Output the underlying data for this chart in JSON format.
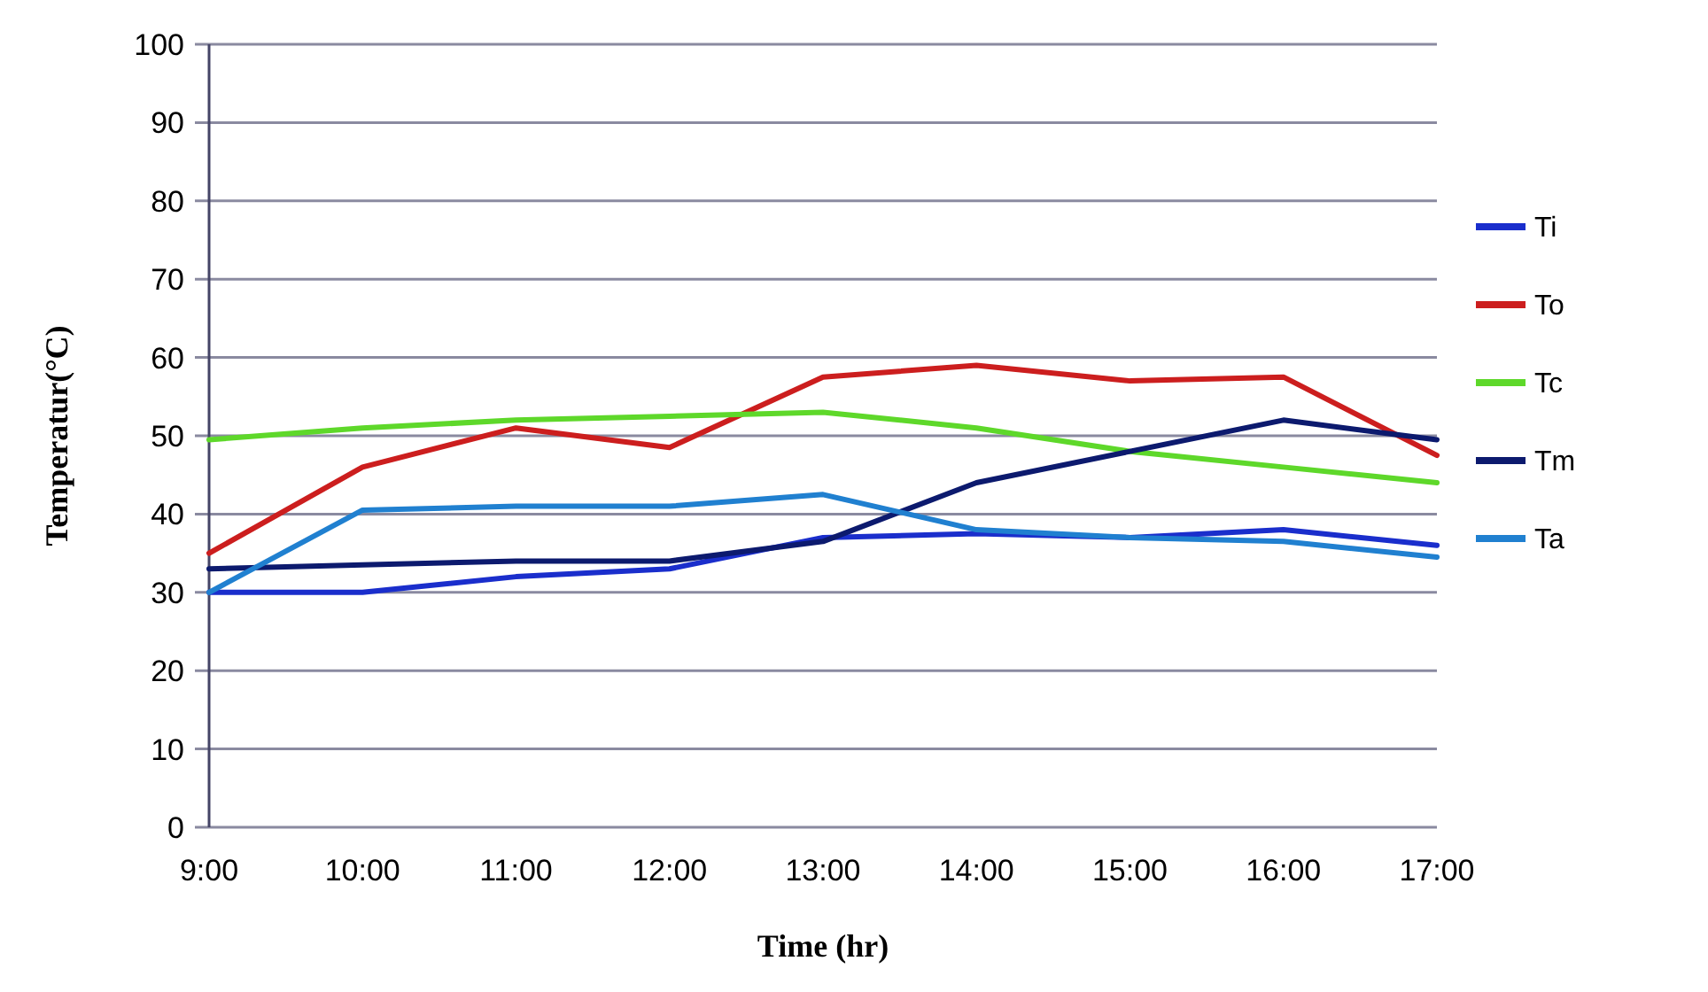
{
  "chart_data": {
    "type": "line",
    "xlabel": "Time (hr)",
    "ylabel": "Temperatur(°C)",
    "x": [
      9,
      10,
      11,
      12,
      13,
      14,
      15,
      16,
      17
    ],
    "xlim": [
      9,
      17
    ],
    "xticks": [
      {
        "value": 9,
        "label": "9:00"
      },
      {
        "value": 10,
        "label": "10:00"
      },
      {
        "value": 11,
        "label": "11:00"
      },
      {
        "value": 12,
        "label": "12:00"
      },
      {
        "value": 13,
        "label": "13:00"
      },
      {
        "value": 14,
        "label": "14:00"
      },
      {
        "value": 15,
        "label": "15:00"
      },
      {
        "value": 16,
        "label": "16:00"
      },
      {
        "value": 17,
        "label": "17:00"
      }
    ],
    "ylim": [
      0,
      100
    ],
    "yticks": [
      0,
      10,
      20,
      30,
      40,
      50,
      60,
      70,
      80,
      90,
      100
    ],
    "grid": "y",
    "legend": "right",
    "marker": "none",
    "line_style": "solid",
    "series": [
      {
        "name": "Ti",
        "color": "#1a2ecc",
        "values": [
          30,
          30,
          32,
          33,
          37,
          37.5,
          37,
          38,
          36
        ]
      },
      {
        "name": "To",
        "color": "#cc1e1e",
        "values": [
          35,
          46,
          51,
          48.5,
          57.5,
          59,
          57,
          57.5,
          47.5
        ]
      },
      {
        "name": "Tc",
        "color": "#5ed82a",
        "values": [
          49.5,
          51,
          52,
          52.5,
          53,
          51,
          48,
          46,
          44
        ]
      },
      {
        "name": "Tm",
        "color": "#0c1a6e",
        "values": [
          33,
          33.5,
          34,
          34,
          36.5,
          44,
          48,
          52,
          49.5
        ]
      },
      {
        "name": "Ta",
        "color": "#2080d0",
        "values": [
          30,
          40.5,
          41,
          41,
          42.5,
          38,
          37,
          36.5,
          34.5
        ]
      }
    ]
  }
}
